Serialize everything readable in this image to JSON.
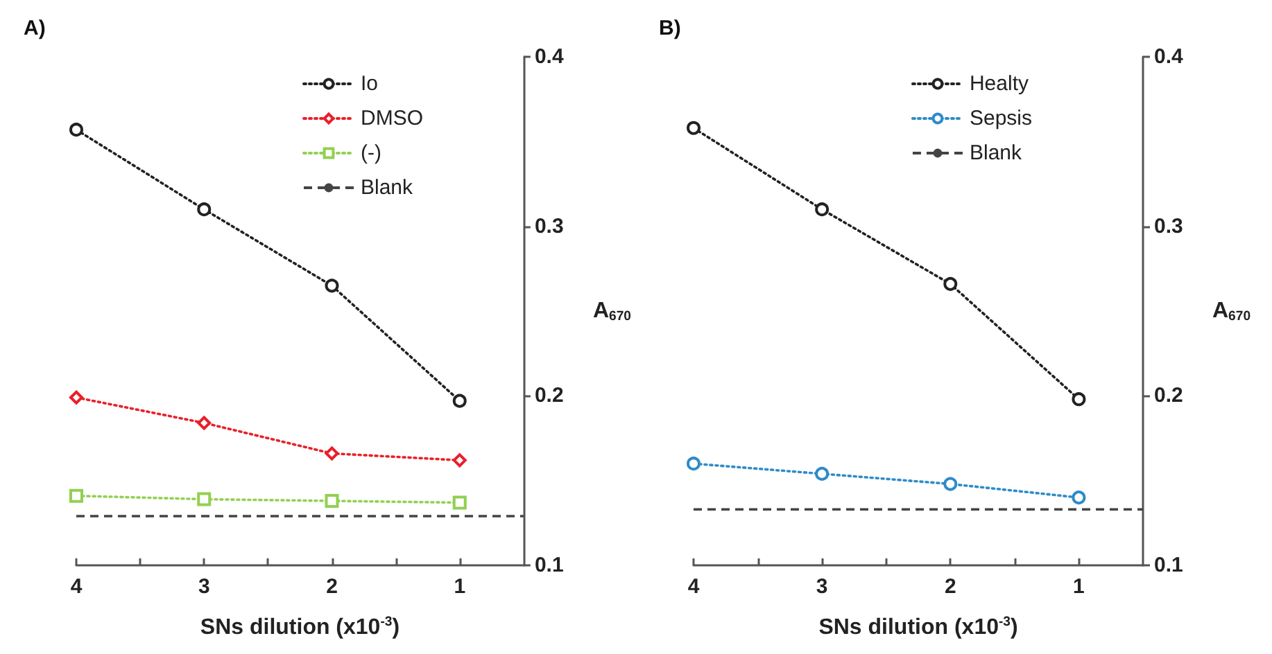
{
  "chart_data": [
    {
      "type": "line",
      "title": "A)",
      "xlabel": "SNs dilution (x10$^{-3}$)",
      "ylabel": "A$_{670}$",
      "x": [
        4,
        3,
        2,
        1
      ],
      "xlim": [
        4,
        0.5
      ],
      "xticks": [
        4,
        {
          "value": 3.5,
          "label": null
        },
        3,
        {
          "value": 2.5,
          "label": null
        },
        2,
        {
          "value": 1.5,
          "label": null
        },
        1
      ],
      "ylim": [
        0.1,
        0.4
      ],
      "yticks": [
        0.1,
        0.2,
        0.3,
        0.4
      ],
      "grid": false,
      "legend": "top right",
      "line_style": "dotted",
      "series": [
        {
          "name": "Io",
          "color": "#222222",
          "marker": "circle",
          "values": [
            0.357,
            0.31,
            0.265,
            0.197
          ]
        },
        {
          "name": "DMSO",
          "color": "#e8202a",
          "marker": "diamond",
          "values": [
            0.199,
            0.184,
            0.166,
            0.162
          ]
        },
        {
          "name": "(-)",
          "color": "#92d050",
          "marker": "square",
          "values": [
            0.141,
            0.139,
            0.138,
            0.137
          ]
        }
      ],
      "ref_lines": [
        {
          "axis": "y",
          "value": 0.129,
          "label": "Blank",
          "color": "#444444",
          "line_style": "dashed"
        }
      ]
    },
    {
      "type": "line",
      "title": "B)",
      "xlabel": "SNs dilution (x10$^{-3}$)",
      "ylabel": "A$_{670}$",
      "x": [
        4,
        3,
        2,
        1
      ],
      "xlim": [
        4,
        0.5
      ],
      "xticks": [
        4,
        {
          "value": 3.5,
          "label": null
        },
        3,
        {
          "value": 2.5,
          "label": null
        },
        2,
        {
          "value": 1.5,
          "label": null
        },
        1
      ],
      "ylim": [
        0.1,
        0.4
      ],
      "yticks": [
        0.1,
        0.2,
        0.3,
        0.4
      ],
      "grid": false,
      "legend": "top right",
      "line_style": "dotted",
      "series": [
        {
          "name": "Healty",
          "color": "#222222",
          "marker": "circle",
          "values": [
            0.358,
            0.31,
            0.266,
            0.198
          ]
        },
        {
          "name": "Sepsis",
          "color": "#2e8bc9",
          "marker": "circle",
          "values": [
            0.16,
            0.154,
            0.148,
            0.14
          ]
        }
      ],
      "ref_lines": [
        {
          "axis": "y",
          "value": 0.133,
          "label": "Blank",
          "color": "#444444",
          "line_style": "dashed"
        }
      ]
    }
  ]
}
